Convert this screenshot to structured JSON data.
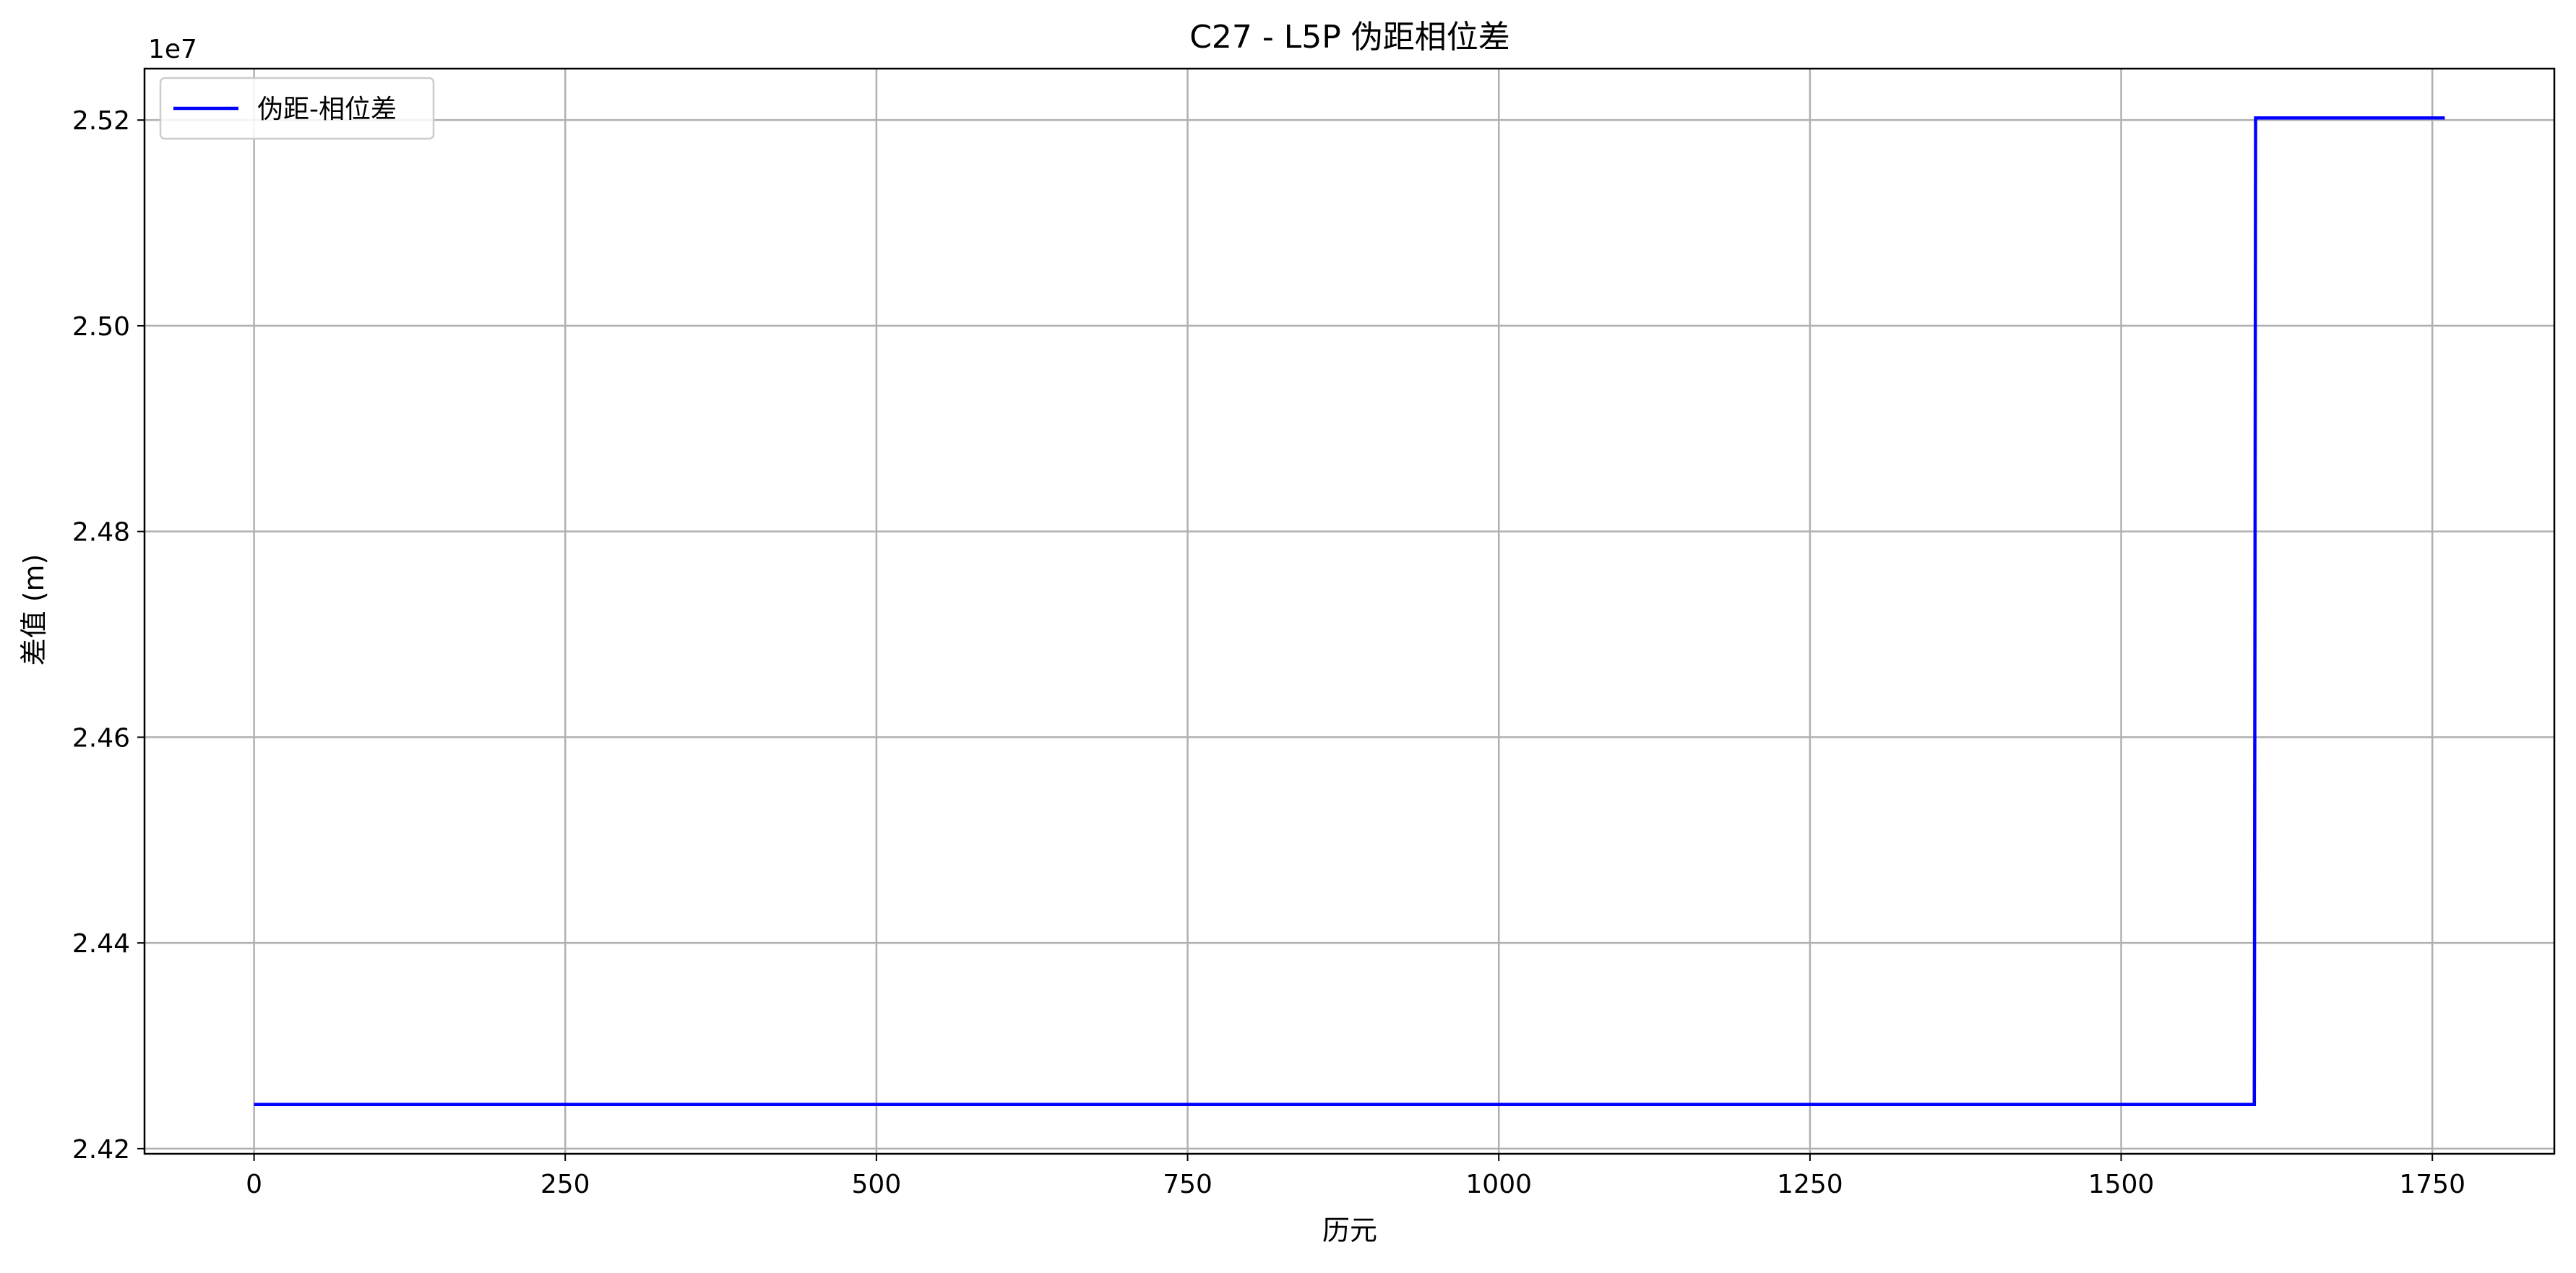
{
  "chart_data": {
    "type": "line",
    "title": "C27 - L5P 伪距相位差",
    "xlabel": "历元",
    "ylabel": "差值 (m)",
    "y_offset_label": "1e7",
    "xlim": [
      -88,
      1848
    ],
    "ylim": [
      24195000,
      25250000
    ],
    "x_ticks": [
      0,
      250,
      500,
      750,
      1000,
      1250,
      1500,
      1750
    ],
    "x_tick_labels": [
      "0",
      "250",
      "500",
      "750",
      "1000",
      "1250",
      "1500",
      "1750"
    ],
    "y_ticks": [
      24200000,
      24400000,
      24600000,
      24800000,
      25000000,
      25200000
    ],
    "y_tick_labels": [
      "2.42",
      "2.44",
      "2.46",
      "2.48",
      "2.50",
      "2.52"
    ],
    "grid": true,
    "legend_position": "upper left",
    "series": [
      {
        "name": "伪距-相位差",
        "color": "#0000ff",
        "x": [
          0,
          1607,
          1608,
          1760
        ],
        "y": [
          24243000,
          24243000,
          25202000,
          25202000
        ]
      }
    ]
  },
  "colors": {
    "series_line": "#0000ff",
    "grid": "#b0b0b0",
    "axes": "#000000"
  }
}
